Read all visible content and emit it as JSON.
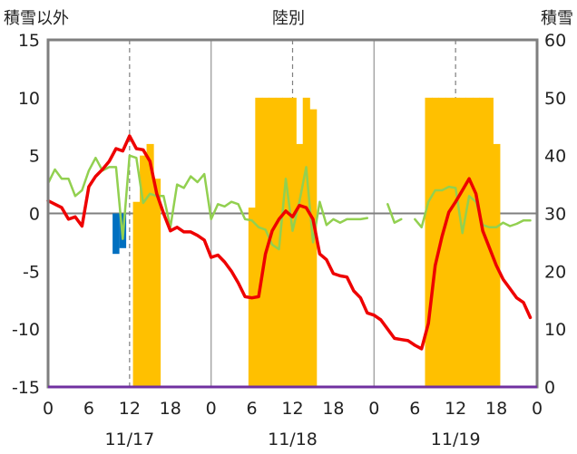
{
  "chart_data": {
    "type": "bar+line",
    "title": "陸別",
    "ylabel_left": "積雪以外",
    "ylabel_right": "積雪",
    "ylim_left": [
      -15,
      15
    ],
    "yticks_left": [
      -15,
      -10,
      -5,
      0,
      5,
      10,
      15
    ],
    "ylim_right": [
      0,
      60
    ],
    "yticks_right": [
      0,
      10,
      20,
      30,
      40,
      50,
      60
    ],
    "x_unit": "hour",
    "xlim": [
      0,
      72
    ],
    "xtick_hours": [
      0,
      6,
      12,
      18,
      24,
      30,
      36,
      42,
      48,
      54,
      60,
      66,
      72
    ],
    "xtick_labels": [
      "0",
      "6",
      "12",
      "18",
      "0",
      "6",
      "12",
      "18",
      "0",
      "6",
      "12",
      "18",
      "0"
    ],
    "day_labels": [
      {
        "hour": 12,
        "label": "11/17"
      },
      {
        "hour": 36,
        "label": "11/18"
      },
      {
        "hour": 60,
        "label": "11/19"
      }
    ],
    "colors": {
      "temperature": "#ee0000",
      "green_series": "#92d050",
      "snow_depth": "#ffc000",
      "negative_bar": "#0070c0",
      "baseline": "#7030a0",
      "frame": "#7f7f7f"
    },
    "series": [
      {
        "key": "temperature",
        "axis": "left",
        "kind": "line",
        "values": [
          1.1,
          0.8,
          0.5,
          -0.5,
          -0.3,
          -1.1,
          2.3,
          3.2,
          3.8,
          4.5,
          5.6,
          5.4,
          6.7,
          5.6,
          5.5,
          4.5,
          1.7,
          0.0,
          -1.5,
          -1.2,
          -1.6,
          -1.6,
          -1.9,
          -2.3,
          -3.8,
          -3.6,
          -4.2,
          -5.0,
          -6.0,
          -7.2,
          -7.3,
          -7.2,
          -3.5,
          -1.5,
          -0.5,
          0.2,
          -0.3,
          0.7,
          0.5,
          -0.5,
          -3.5,
          -4.0,
          -5.2,
          -5.4,
          -5.5,
          -6.7,
          -7.3,
          -8.6,
          -8.8,
          -9.2,
          -10.0,
          -10.8,
          -10.9,
          -11.0,
          -11.4,
          -11.7,
          -9.5,
          -4.5,
          -2.0,
          0.1,
          1.0,
          2.0,
          3.0,
          1.7,
          -1.5,
          -3.0,
          -4.5,
          -5.7,
          -6.5,
          -7.3,
          -7.7,
          -9.0
        ]
      },
      {
        "key": "green_series",
        "axis": "left",
        "kind": "line",
        "values": [
          2.6,
          3.8,
          3.0,
          3.0,
          1.5,
          2.0,
          3.7,
          4.8,
          3.7,
          4.0,
          4.0,
          -2.2,
          5.0,
          4.8,
          0.9,
          1.7,
          1.5,
          1.5,
          -1.2,
          2.5,
          2.2,
          3.2,
          2.7,
          3.4,
          -0.5,
          0.8,
          0.6,
          1.0,
          0.8,
          -0.5,
          -0.6,
          -1.2,
          -1.4,
          -2.7,
          -3.1,
          3.0,
          -1.5,
          1.0,
          4.0,
          -2.5,
          1.0,
          -1.0,
          -0.5,
          -0.8,
          -0.5,
          -0.5,
          -0.5,
          -0.4,
          null,
          null,
          0.8,
          -0.8,
          -0.5,
          null,
          -0.5,
          -1.2,
          1.0,
          2.0,
          2.0,
          2.3,
          2.2,
          -1.7,
          1.5,
          1.0,
          -1.0,
          -1.2,
          -1.2,
          -0.8,
          -1.1,
          -0.9,
          -0.6,
          -0.6
        ]
      },
      {
        "key": "snow_depth",
        "axis": "right",
        "kind": "bar",
        "values": [
          0,
          0,
          0,
          0,
          0,
          0,
          0,
          0,
          0,
          0,
          0,
          0,
          0,
          32,
          40,
          42,
          36,
          0,
          0,
          0,
          0,
          0,
          0,
          0,
          0,
          0,
          0,
          0,
          0,
          0,
          31,
          50,
          50,
          50,
          50,
          50,
          50,
          42,
          50,
          48,
          0,
          0,
          0,
          0,
          0,
          0,
          0,
          0,
          0,
          0,
          0,
          0,
          0,
          0,
          0,
          0,
          50,
          50,
          50,
          50,
          50,
          50,
          50,
          50,
          50,
          50,
          42,
          0,
          0,
          0,
          0,
          0
        ]
      },
      {
        "key": "negative_bar",
        "axis": "left",
        "kind": "bar",
        "values": [
          0,
          0,
          0,
          0,
          0,
          0,
          0,
          0,
          0,
          0,
          -3.5,
          -3.0,
          0,
          0,
          0,
          0,
          0,
          0,
          0,
          0,
          0,
          0,
          0,
          0,
          0,
          0,
          0,
          0,
          0,
          0,
          0,
          0,
          0,
          0,
          0,
          0,
          0,
          0,
          0,
          0,
          0,
          0,
          0,
          0,
          0,
          0,
          0,
          0,
          0,
          0,
          0,
          0,
          0,
          0,
          0,
          0,
          0,
          0,
          0,
          0,
          0,
          0,
          0,
          0,
          0,
          0,
          0,
          0,
          0,
          0,
          0,
          0
        ]
      }
    ]
  }
}
